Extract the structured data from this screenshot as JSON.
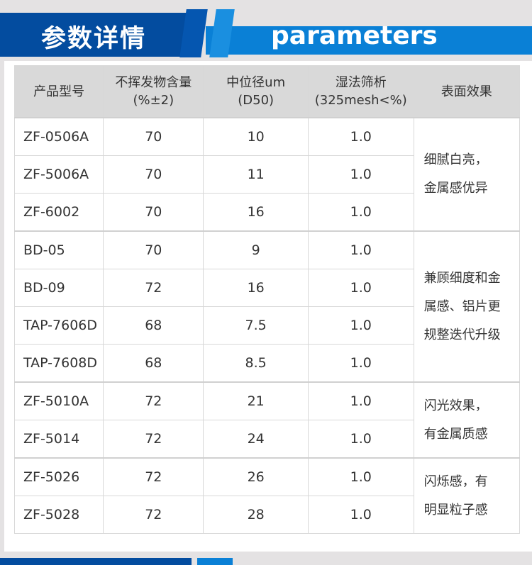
{
  "header": {
    "title_cn": "参数详情",
    "title_en": "parameters",
    "colors": {
      "dark_blue": "#034c9f",
      "light_blue": "#0a80d6"
    }
  },
  "table": {
    "columns": [
      {
        "line1": "产品型号",
        "line2": ""
      },
      {
        "line1": "不挥发物含量",
        "line2": "(%±2)"
      },
      {
        "line1": "中位径um",
        "line2": "(D50)"
      },
      {
        "line1": "湿法筛析",
        "line2": "(325mesh<%)"
      },
      {
        "line1": "表面效果",
        "line2": ""
      }
    ],
    "rows": [
      {
        "model": "ZF-0506A",
        "nv": "70",
        "d50": "10",
        "sieve": "1.0"
      },
      {
        "model": "ZF-5006A",
        "nv": "70",
        "d50": "11",
        "sieve": "1.0"
      },
      {
        "model": "ZF-6002",
        "nv": "70",
        "d50": "16",
        "sieve": "1.0"
      },
      {
        "model": "BD-05",
        "nv": "70",
        "d50": "9",
        "sieve": "1.0"
      },
      {
        "model": "BD-09",
        "nv": "72",
        "d50": "16",
        "sieve": "1.0"
      },
      {
        "model": "TAP-7606D",
        "nv": "68",
        "d50": "7.5",
        "sieve": "1.0"
      },
      {
        "model": "TAP-7608D",
        "nv": "68",
        "d50": "8.5",
        "sieve": "1.0"
      },
      {
        "model": "ZF-5010A",
        "nv": "72",
        "d50": "21",
        "sieve": "1.0"
      },
      {
        "model": "ZF-5014",
        "nv": "72",
        "d50": "24",
        "sieve": "1.0"
      },
      {
        "model": "ZF-5026",
        "nv": "72",
        "d50": "26",
        "sieve": "1.0"
      },
      {
        "model": "ZF-5028",
        "nv": "72",
        "d50": "28",
        "sieve": "1.0"
      }
    ],
    "effects": [
      {
        "lines": [
          "细腻白亮，",
          "金属感优异"
        ]
      },
      {
        "lines": [
          "兼顾细度和金",
          "属感、铝片更",
          "规整迭代升级"
        ]
      },
      {
        "lines": [
          "闪光效果，",
          "有金属质感"
        ]
      },
      {
        "lines": [
          "闪烁感，有",
          "明显粒子感"
        ]
      }
    ]
  }
}
